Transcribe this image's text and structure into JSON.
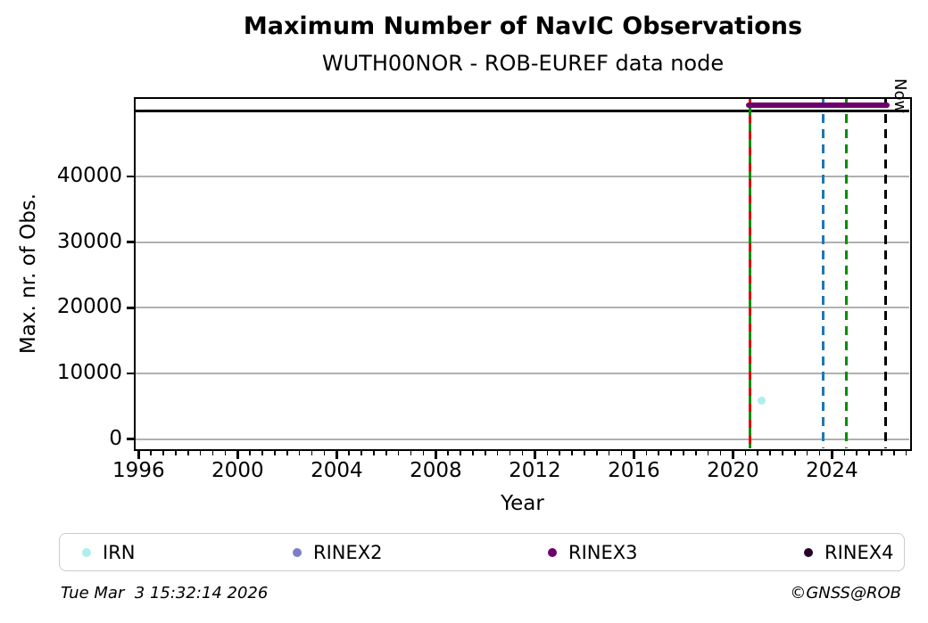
{
  "header": {
    "title": "Maximum Number of NavIC Observations",
    "subtitle": "WUTH00NOR - ROB-EUREF data node"
  },
  "chart_data": {
    "type": "line",
    "title": "Maximum Number of NavIC Observations",
    "subtitle": "WUTH00NOR - ROB-EUREF data node",
    "xlabel": "Year",
    "ylabel": "Max. nr. of Obs.",
    "xlim": [
      1995.88,
      2027.12
    ],
    "ylim": [
      -1400,
      51800
    ],
    "xticks": [
      1996,
      2000,
      2004,
      2008,
      2012,
      2016,
      2020,
      2024
    ],
    "xminor_step": 0.5,
    "yticks": [
      0,
      10000,
      20000,
      30000,
      40000
    ],
    "grid": "horizontal-major-gray",
    "grid_color": "#b0b0b0",
    "reference_line_y": 50000,
    "series": [
      {
        "name": "IRN",
        "color": "#aeeeee",
        "type": "scatter",
        "points": [
          [
            2021.15,
            5900
          ]
        ]
      },
      {
        "name": "RINEX2",
        "color": "#7d7ec8",
        "type": "scatter",
        "points": []
      },
      {
        "name": "RINEX3",
        "color": "#6e006e",
        "type": "segment",
        "from": [
          2020.68,
          50800
        ],
        "to": [
          2026.2,
          50800
        ]
      },
      {
        "name": "RINEX4",
        "color": "#270127",
        "type": "scatter",
        "points": []
      }
    ],
    "vlines": [
      {
        "x": 2020.68,
        "style": "solid",
        "color": "#009000",
        "overlay_color": "#dd0000",
        "overlay_style": "dashed"
      },
      {
        "x": 2023.64,
        "style": "dashed",
        "color": "#1f77b4"
      },
      {
        "x": 2024.58,
        "style": "dashed",
        "color": "#009000"
      },
      {
        "x": 2026.17,
        "style": "dashed",
        "color": "#000000",
        "label": "Now"
      }
    ],
    "legend": {
      "position": "bottom",
      "entries": [
        {
          "label": "IRN",
          "color": "#aeeeee"
        },
        {
          "label": "RINEX2",
          "color": "#7d7ec8"
        },
        {
          "label": "RINEX3",
          "color": "#6e006e"
        },
        {
          "label": "RINEX4",
          "color": "#270127"
        }
      ]
    }
  },
  "footer": {
    "timestamp": "Tue Mar  3 15:32:14 2026",
    "copyright": "©GNSS@ROB"
  }
}
